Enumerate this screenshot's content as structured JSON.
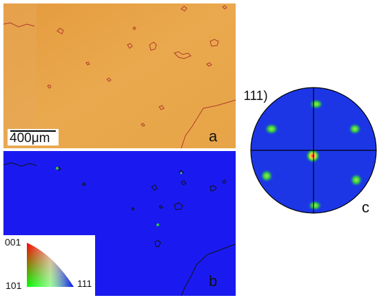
{
  "panel_a": {
    "label": "a",
    "scale_bar": "400μm"
  },
  "panel_b": {
    "label": "b",
    "ipf_key": {
      "corner_top": "001",
      "corner_bottom_left": "101",
      "corner_bottom_right": "111"
    }
  },
  "panel_c": {
    "label": "c",
    "pole_figure_plane": "(111)"
  },
  "colors": {
    "panel_a_bg": "#e8a64a",
    "grain_boundary_a": "#b03a2a",
    "panel_b_bg": "#1a1af0",
    "pole_figure_bg": "#1c36e6",
    "pole_hotspot": "#2ecc40",
    "pole_center": "#ff2a2a"
  }
}
